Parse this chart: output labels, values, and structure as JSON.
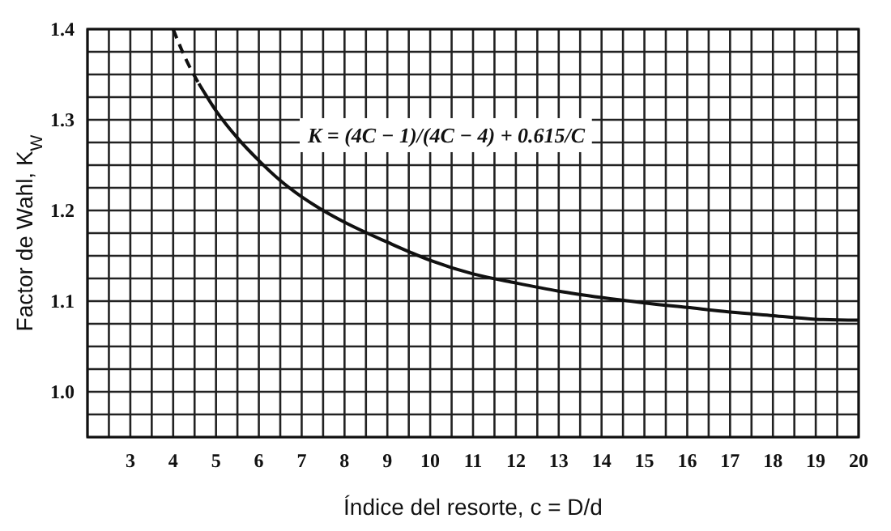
{
  "chart_data": {
    "type": "line",
    "xlabel": "Índice del resorte, c = D/d",
    "ylabel": "Factor de Wahl, K$_{W}$",
    "xlim": [
      2,
      20
    ],
    "ylim": [
      0.95,
      1.4
    ],
    "xticks": [
      3,
      4,
      5,
      6,
      7,
      8,
      9,
      10,
      11,
      12,
      13,
      14,
      15,
      16,
      17,
      18,
      19,
      20
    ],
    "yticks": [
      {
        "value": 1.0,
        "label": "1.0"
      },
      1.1,
      1.2,
      1.3,
      1.4
    ],
    "grid": true,
    "marker": "none",
    "series": [
      {
        "color": "#111111",
        "line_style": "dashed",
        "x": [
          4,
          4.2,
          4.4,
          4.6
        ],
        "values": [
          1.4,
          1.377,
          1.357,
          1.34
        ]
      },
      {
        "color": "#111111",
        "line_style": "solid",
        "x": [
          4.6,
          5,
          5.5,
          6,
          6.5,
          7,
          7.5,
          8,
          9,
          10,
          11,
          12,
          13,
          14,
          15,
          16,
          17,
          18,
          19,
          20
        ],
        "values": [
          1.34,
          1.31,
          1.28,
          1.255,
          1.233,
          1.215,
          1.2,
          1.187,
          1.165,
          1.145,
          1.13,
          1.12,
          1.111,
          1.104,
          1.098,
          1.093,
          1.088,
          1.084,
          1.08,
          1.079
        ]
      }
    ],
    "annotations": [
      "K = (4C − 1)/(4C − 4) + 0.615/C"
    ]
  }
}
